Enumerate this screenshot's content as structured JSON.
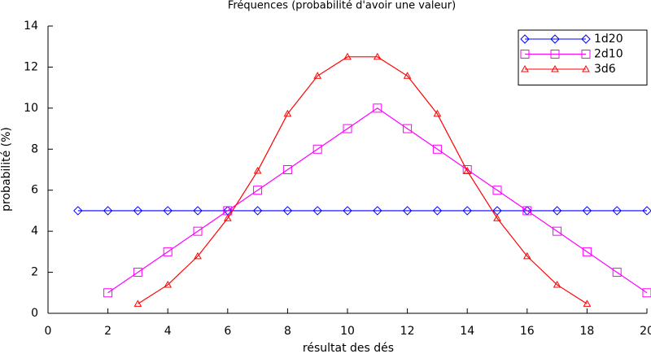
{
  "chart_data": {
    "type": "line",
    "title": "Fréquences (probabilité d'avoir une valeur)",
    "x_label": "résultat des dés",
    "y_label": "probabilité (%)",
    "xlim": [
      0,
      20
    ],
    "xticks": [
      0,
      2,
      4,
      6,
      8,
      10,
      12,
      14,
      16,
      18,
      20
    ],
    "ylim": [
      0,
      14
    ],
    "yticks": [
      0,
      2,
      4,
      6,
      8,
      10,
      12,
      14
    ],
    "legend": "upper right",
    "series": [
      {
        "name": "1d20",
        "color": "#0000ff",
        "marker": "diamond",
        "x": [
          1,
          2,
          3,
          4,
          5,
          6,
          7,
          8,
          9,
          10,
          11,
          12,
          13,
          14,
          15,
          16,
          17,
          18,
          19,
          20
        ],
        "values": [
          5,
          5,
          5,
          5,
          5,
          5,
          5,
          5,
          5,
          5,
          5,
          5,
          5,
          5,
          5,
          5,
          5,
          5,
          5,
          5
        ]
      },
      {
        "name": "2d10",
        "color": "#ff00ff",
        "marker": "square",
        "x": [
          2,
          3,
          4,
          5,
          6,
          7,
          8,
          9,
          10,
          11,
          12,
          13,
          14,
          15,
          16,
          17,
          18,
          19,
          20
        ],
        "values": [
          1,
          2,
          3,
          4,
          5,
          6,
          7,
          8,
          9,
          10,
          9,
          8,
          7,
          6,
          5,
          4,
          3,
          2,
          1
        ]
      },
      {
        "name": "3d6",
        "color": "#ff0000",
        "marker": "triangle",
        "x": [
          3,
          4,
          5,
          6,
          7,
          8,
          9,
          10,
          11,
          12,
          13,
          14,
          15,
          16,
          17,
          18
        ],
        "values": [
          0.46,
          1.39,
          2.78,
          4.63,
          6.94,
          9.72,
          11.57,
          12.5,
          12.5,
          11.57,
          9.72,
          6.94,
          4.63,
          2.78,
          1.39,
          0.46
        ]
      }
    ]
  }
}
